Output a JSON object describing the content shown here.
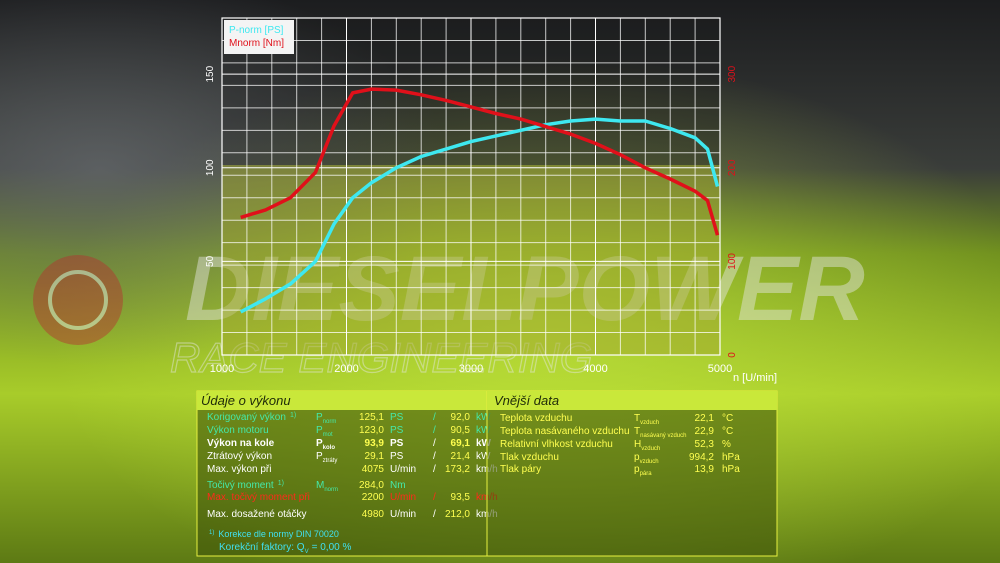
{
  "chart_data": {
    "type": "line",
    "x_label": "n [U/min]",
    "x": [
      1150,
      1350,
      1550,
      1750,
      1900,
      2050,
      2200,
      2400,
      2600,
      2800,
      3000,
      3200,
      3400,
      3600,
      3800,
      4000,
      4200,
      4400,
      4600,
      4800,
      4900,
      4980
    ],
    "xlim": [
      1000,
      5000
    ],
    "xticks": [
      1000,
      2000,
      3000,
      4000,
      5000
    ],
    "ylim": [
      0,
      180
    ],
    "yticks": [
      50,
      100,
      150
    ],
    "y2lim": [
      0,
      360
    ],
    "y2ticks": [
      0,
      100,
      200,
      300
    ],
    "y2_color": "#e0101a",
    "grid": true,
    "series": [
      {
        "name": "P-norm [PS]",
        "color": "#3ee8f0",
        "values": [
          23,
          30,
          38,
          50,
          70,
          84,
          92,
          100,
          106,
          110,
          114,
          117,
          120,
          123,
          125,
          126,
          125,
          125,
          121,
          116,
          110,
          90
        ]
      },
      {
        "name": "Mnorm [Nm]",
        "color": "#e0101a",
        "axis": "y2",
        "values": [
          147,
          155,
          168,
          195,
          245,
          280,
          284,
          283,
          278,
          272,
          265,
          258,
          252,
          244,
          236,
          226,
          214,
          200,
          188,
          175,
          165,
          128
        ]
      }
    ]
  },
  "watermark": {
    "brand": "DIESELPOWER",
    "tagline": "RACE ENGINEERING"
  },
  "performance": {
    "title": "Údaje o výkonu",
    "rows": [
      {
        "label": "Korigovaný výkon",
        "note": "1)",
        "symbol": "P",
        "sub": "norm",
        "v1": "125,1",
        "u1": "PS",
        "sep": "/",
        "v2": "92,0",
        "u2": "kW",
        "color": "#45e8a8"
      },
      {
        "label": "Výkon motoru",
        "symbol": "P",
        "sub": "mot",
        "v1": "123,0",
        "u1": "PS",
        "sep": "/",
        "v2": "90,5",
        "u2": "kW",
        "color": "#45e8a8"
      },
      {
        "label": "Výkon na kole",
        "symbol": "P",
        "sub": "kolo",
        "v1": "93,9",
        "u1": "PS",
        "sep": "/",
        "v2": "69,1",
        "u2": "kW",
        "color": "#ffffff",
        "bold": true
      },
      {
        "label": "Ztrátový výkon",
        "symbol": "P",
        "sub": "ztráty",
        "v1": "29,1",
        "u1": "PS",
        "sep": "/",
        "v2": "21,4",
        "u2": "kW",
        "color": "#ffffff"
      },
      {
        "label": "Max. výkon při",
        "v1": "4075",
        "u1": "U/min",
        "sep": "/",
        "v2": "173,2",
        "u2": "km/h",
        "color": "#ffffff"
      },
      {
        "label": "Točivý moment",
        "note": "1)",
        "symbol": "M",
        "sub": "norm",
        "v1": "284,0",
        "u1": "Nm",
        "color": "#45e8a8"
      },
      {
        "label": "Max. točivý moment při",
        "v1": "2200",
        "u1": "U/min",
        "sep": "/",
        "v2": "93,5",
        "u2": "km/h",
        "color": "#ff2a1a"
      },
      {
        "label": "Max. dosažené otáčky",
        "v1": "4980",
        "u1": "U/min",
        "sep": "/",
        "v2": "212,0",
        "u2": "km/h",
        "color": "#ffffff"
      }
    ],
    "footnote": {
      "mark": "1)",
      "text": "Korekce dle normy DIN 70020",
      "factor_label": "Korekční faktory: Q",
      "factor_sub": "V",
      "factor_value": "=  0,00 %"
    }
  },
  "conditions": {
    "title": "Vnější data",
    "rows": [
      {
        "label": "Teplota vzduchu",
        "symbol": "T",
        "sub": "vzduch",
        "v1": "22,1",
        "u1": "°C"
      },
      {
        "label": "Teplota nasávaného vzduchu",
        "symbol": "T",
        "sub": "nasávaný vzduch",
        "v1": "22,9",
        "u1": "°C"
      },
      {
        "label": "Relativní vlhkost vzduchu",
        "symbol": "H",
        "sub": "vzduch",
        "v1": "52,3",
        "u1": "%"
      },
      {
        "label": "Tlak vzduchu",
        "symbol": "p",
        "sub": "vzduch",
        "v1": "994,2",
        "u1": "hPa"
      },
      {
        "label": "Tlak páry",
        "symbol": "p",
        "sub": "pára",
        "v1": "13,9",
        "u1": "hPa"
      }
    ]
  }
}
